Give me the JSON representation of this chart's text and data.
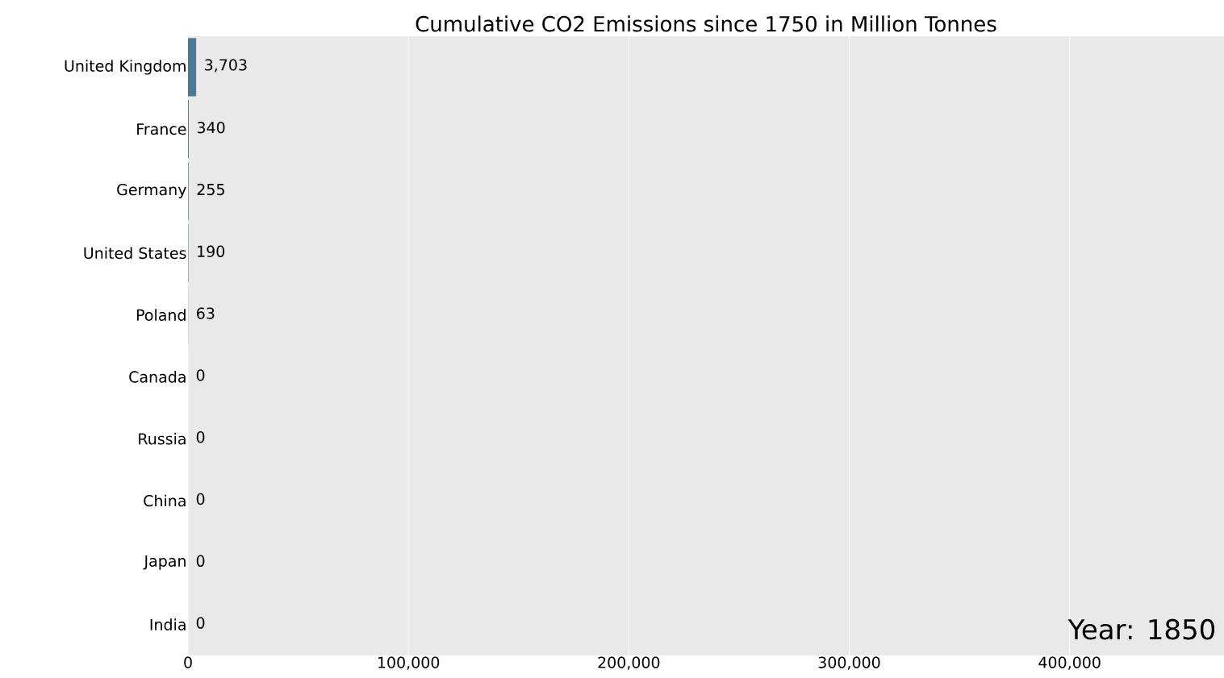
{
  "chart_data": {
    "type": "bar",
    "orientation": "horizontal",
    "title": "Cumulative CO2 Emissions since 1750 in Million Tonnes",
    "categories": [
      "United Kingdom",
      "France",
      "Germany",
      "United States",
      "Poland",
      "Canada",
      "Russia",
      "China",
      "Japan",
      "India"
    ],
    "values": [
      3703,
      340,
      255,
      190,
      63,
      0,
      0,
      0,
      0,
      0
    ],
    "value_labels": [
      "3,703",
      "340",
      "255",
      "190",
      "63",
      "0",
      "0",
      "0",
      "0",
      "0"
    ],
    "color": "#4a7a94",
    "xlim": [
      0,
      470000
    ],
    "xticks": [
      0,
      {
        "value": 100000,
        "label": "100,000"
      },
      {
        "value": 200000,
        "label": "200,000"
      },
      {
        "value": 300000,
        "label": "300,000"
      },
      {
        "value": 400000,
        "label": "400,000"
      }
    ],
    "grid": "x",
    "annotations": [
      "Year: 1850"
    ]
  }
}
